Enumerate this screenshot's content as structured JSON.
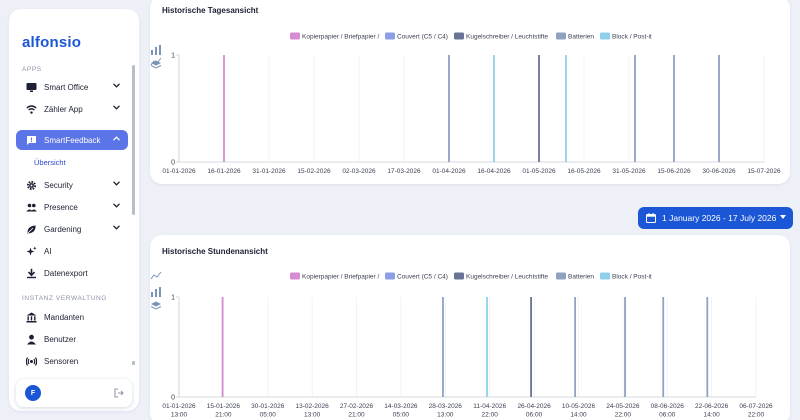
{
  "sidebar": {
    "logo": "alfonsio",
    "sections": [
      "APPS",
      "INSTANZ VERWALTUNG"
    ],
    "items": [
      {
        "label": "Smart Office",
        "icon": "monitor-icon",
        "chevron": true
      },
      {
        "label": "Zähler App",
        "icon": "wifi-icon",
        "chevron": true
      },
      {
        "label": "SmartFeedback",
        "icon": "feedback-icon",
        "chevron": true,
        "active": true
      },
      {
        "label": "Security",
        "icon": "gear-icon",
        "chevron": true
      },
      {
        "label": "Presence",
        "icon": "people-icon",
        "chevron": true
      },
      {
        "label": "Gardening",
        "icon": "leaf-icon",
        "chevron": true
      },
      {
        "label": "AI",
        "icon": "sparkle-icon",
        "chevron": false
      },
      {
        "label": "Datenexport",
        "icon": "download-icon",
        "chevron": false
      },
      {
        "label": "Mandanten",
        "icon": "bank-icon",
        "chevron": false
      },
      {
        "label": "Benutzer",
        "icon": "person-icon",
        "chevron": false
      },
      {
        "label": "Sensoren",
        "icon": "sensor-icon",
        "chevron": false
      }
    ],
    "subitem": "Übersicht",
    "user_initial": "F"
  },
  "colors": {
    "accent": "#1a56d6",
    "active_nav": "#5b74e8"
  },
  "date_range": "1 January 2026 - 17 July 2026",
  "chart_data": [
    {
      "type": "bar",
      "title": "Historische Tagesansicht",
      "legend": [
        "Kopierpapier / Briefpapier /",
        "Couvert (C5 / C4)",
        "Kugelschreiber / Leuchtstifte",
        "Batterien",
        "Block / Post-it"
      ],
      "legend_colors": [
        "#d58cd0",
        "#8d9de6",
        "#6a7396",
        "#8ea2c2",
        "#8fd0ec"
      ],
      "x_ticks": [
        "01-01-2026",
        "16-01-2026",
        "31-01-2026",
        "15-02-2026",
        "02-03-2026",
        "17-03-2026",
        "01-04-2026",
        "16-04-2026",
        "01-05-2026",
        "16-05-2026",
        "31-05-2026",
        "15-06-2026",
        "30-06-2026",
        "15-07-2026"
      ],
      "y_ticks": [
        "0",
        "1"
      ],
      "ylim": [
        0,
        1
      ],
      "xlim": [
        "2026-01-01",
        "2026-07-15"
      ],
      "points": [
        {
          "x": "2026-01-16",
          "y": 1,
          "series": 0
        },
        {
          "x": "2026-04-01",
          "y": 1,
          "series": 3
        },
        {
          "x": "2026-04-16",
          "y": 1,
          "series": 4
        },
        {
          "x": "2026-05-01",
          "y": 1,
          "series": 2
        },
        {
          "x": "2026-05-10",
          "y": 1,
          "series": 4
        },
        {
          "x": "2026-06-02",
          "y": 1,
          "series": 3
        },
        {
          "x": "2026-06-15",
          "y": 1,
          "series": 3
        },
        {
          "x": "2026-06-30",
          "y": 1,
          "series": 3
        }
      ]
    },
    {
      "type": "bar",
      "title": "Historische Stundenansicht",
      "legend": [
        "Kopierpapier / Briefpapier /",
        "Couvert (C5 / C4)",
        "Kugelschreiber / Leuchtstifte",
        "Batterien",
        "Block / Post-it"
      ],
      "legend_colors": [
        "#d58cd0",
        "#8d9de6",
        "#6a7396",
        "#8ea2c2",
        "#8fd0ec"
      ],
      "x_ticks": [
        [
          "01-01-2026",
          "13:00"
        ],
        [
          "15-01-2026",
          "21:00"
        ],
        [
          "30-01-2026",
          "05:00"
        ],
        [
          "13-02-2026",
          "13:00"
        ],
        [
          "27-02-2026",
          "21:00"
        ],
        [
          "14-03-2026",
          "05:00"
        ],
        [
          "28-03-2026",
          "13:00"
        ],
        [
          "11-04-2026",
          "22:00"
        ],
        [
          "26-04-2026",
          "06:00"
        ],
        [
          "10-05-2026",
          "14:00"
        ],
        [
          "24-05-2026",
          "22:00"
        ],
        [
          "08-06-2026",
          "06:00"
        ],
        [
          "22-06-2026",
          "14:00"
        ],
        [
          "06-07-2026",
          "22:00"
        ]
      ],
      "y_ticks": [
        "0",
        "1"
      ],
      "ylim": [
        0,
        1
      ],
      "xlim": [
        "2026-01-01T13:00",
        "2026-07-17T00:00"
      ],
      "points": [
        {
          "x": "2026-01-16T09:00",
          "y": 1,
          "series": 0
        },
        {
          "x": "2026-04-01T10:00",
          "y": 1,
          "series": 3
        },
        {
          "x": "2026-04-16T10:00",
          "y": 1,
          "series": 4
        },
        {
          "x": "2026-05-01T10:00",
          "y": 1,
          "series": 2
        },
        {
          "x": "2026-05-16T10:00",
          "y": 1,
          "series": 3
        },
        {
          "x": "2026-06-02T10:00",
          "y": 1,
          "series": 3
        },
        {
          "x": "2026-06-15T10:00",
          "y": 1,
          "series": 3
        },
        {
          "x": "2026-06-30T10:00",
          "y": 1,
          "series": 3
        }
      ]
    }
  ]
}
